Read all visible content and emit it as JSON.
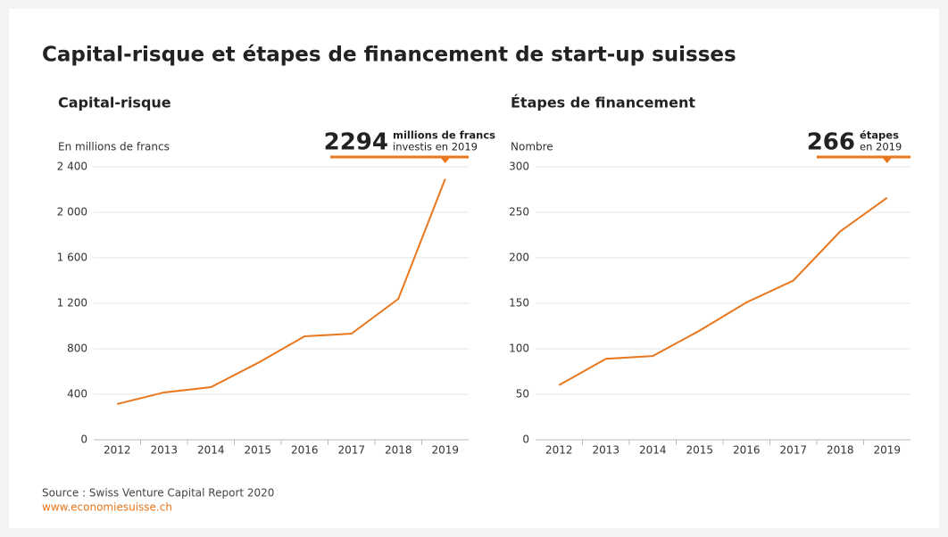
{
  "title": "Capital-risque et étapes de financement de start-up suisses",
  "source": "Source : Swiss Venture Capital Report 2020",
  "url": "www.economiesuisse.ch",
  "chart_data": [
    {
      "type": "line",
      "title": "Capital-risque",
      "y_label": "En millions de francs",
      "annotation": {
        "number": "2294",
        "unit": "millions de francs",
        "text": "investis en 2019"
      },
      "categories": [
        "2012",
        "2013",
        "2014",
        "2015",
        "2016",
        "2017",
        "2018",
        "2019"
      ],
      "series": [
        {
          "name": "Capital-risque",
          "color": "#e8771e",
          "values": [
            314,
            416,
            463,
            675,
            910,
            933,
            1239,
            2294
          ]
        }
      ],
      "ylim": [
        0,
        2400
      ],
      "yticks": [
        0,
        400,
        800,
        {
          "value": 1200,
          "label": "1 200"
        },
        {
          "value": 1600,
          "label": "1 600"
        },
        {
          "value": 2000,
          "label": "2 000"
        },
        {
          "value": 2400,
          "label": "2 400"
        }
      ],
      "grid": true
    },
    {
      "type": "line",
      "title": "Étapes de financement",
      "y_label": "Nombre",
      "annotation": {
        "number": "266",
        "unit": "étapes",
        "text": "en 2019"
      },
      "categories": [
        "2012",
        "2013",
        "2014",
        "2015",
        "2016",
        "2017",
        "2018",
        "2019"
      ],
      "series": [
        {
          "name": "Étapes de financement",
          "color": "#e8771e",
          "values": [
            60,
            89,
            92,
            120,
            151,
            175,
            229,
            266
          ]
        }
      ],
      "ylim": [
        0,
        300
      ],
      "yticks": [
        0,
        50,
        100,
        150,
        200,
        250,
        300
      ],
      "grid": true
    }
  ]
}
